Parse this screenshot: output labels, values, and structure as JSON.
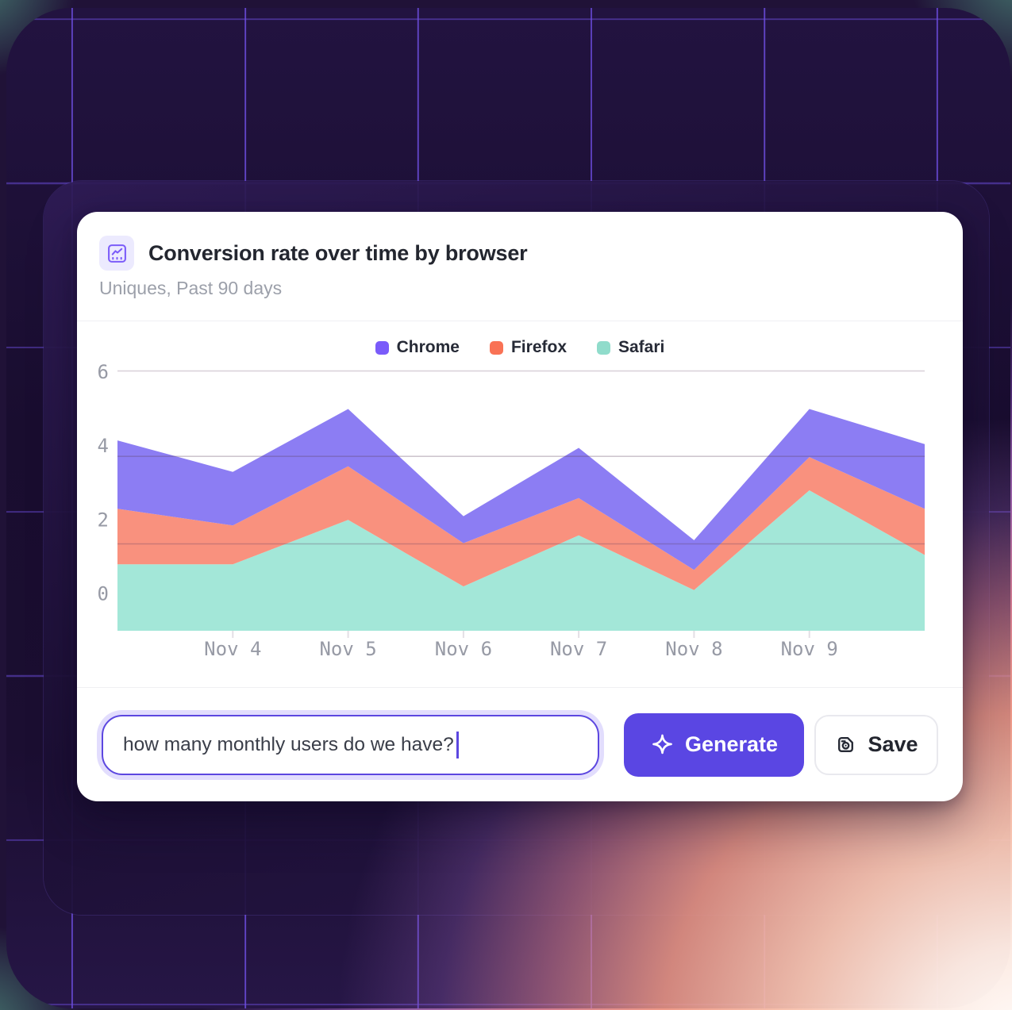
{
  "card": {
    "title": "Conversion rate over time by browser",
    "subtitle": "Uniques, Past 90 days"
  },
  "chart_data": {
    "type": "area",
    "stacked": true,
    "title": "Conversion rate over time by browser",
    "categories": [
      "",
      "Nov 4",
      "Nov 5",
      "Nov 6",
      "Nov 7",
      "Nov 8",
      "Nov 9",
      ""
    ],
    "series": [
      {
        "name": "Chrome",
        "color": "#7A5BFA",
        "fill": "#8C7DF3",
        "values": [
          1.85,
          1.45,
          1.55,
          0.73,
          1.36,
          0.8,
          1.3,
          1.75
        ]
      },
      {
        "name": "Firefox",
        "color": "#F97255",
        "fill": "#F9917E",
        "values": [
          1.5,
          1.05,
          1.45,
          1.17,
          1.01,
          0.55,
          0.9,
          1.25
        ]
      },
      {
        "name": "Safari",
        "color": "#90DCCB",
        "fill": "#A3E7D8",
        "values": [
          1.8,
          1.8,
          3.0,
          1.2,
          2.58,
          1.1,
          3.8,
          2.05
        ]
      }
    ],
    "stack_order": [
      "Safari",
      "Firefox",
      "Chrome"
    ],
    "stacked_totals": [
      5.15,
      4.3,
      6.0,
      3.1,
      4.95,
      2.45,
      6.0,
      5.05
    ],
    "y_ticks": [
      6,
      4,
      2,
      0
    ],
    "ylim": [
      -1.0,
      6.3
    ],
    "gridlines": [
      6.03,
      3.72,
      1.35
    ],
    "grid": true,
    "legend_position": "top"
  },
  "footer": {
    "input_value": "how many monthly users do we have?",
    "generate_label": "Generate",
    "save_label": "Save"
  },
  "theme": {
    "accent": "#5A46E3",
    "card_bg": "#ffffff",
    "title_color": "#23262F",
    "subtitle_color": "#9CA0AA",
    "axis_label_color": "#979AA5",
    "background_dark": "#1a0e2f",
    "background_grid_line": "#6C4DDE",
    "glow_warm": "#EF9D8D",
    "corner_teal": "#45746D"
  }
}
